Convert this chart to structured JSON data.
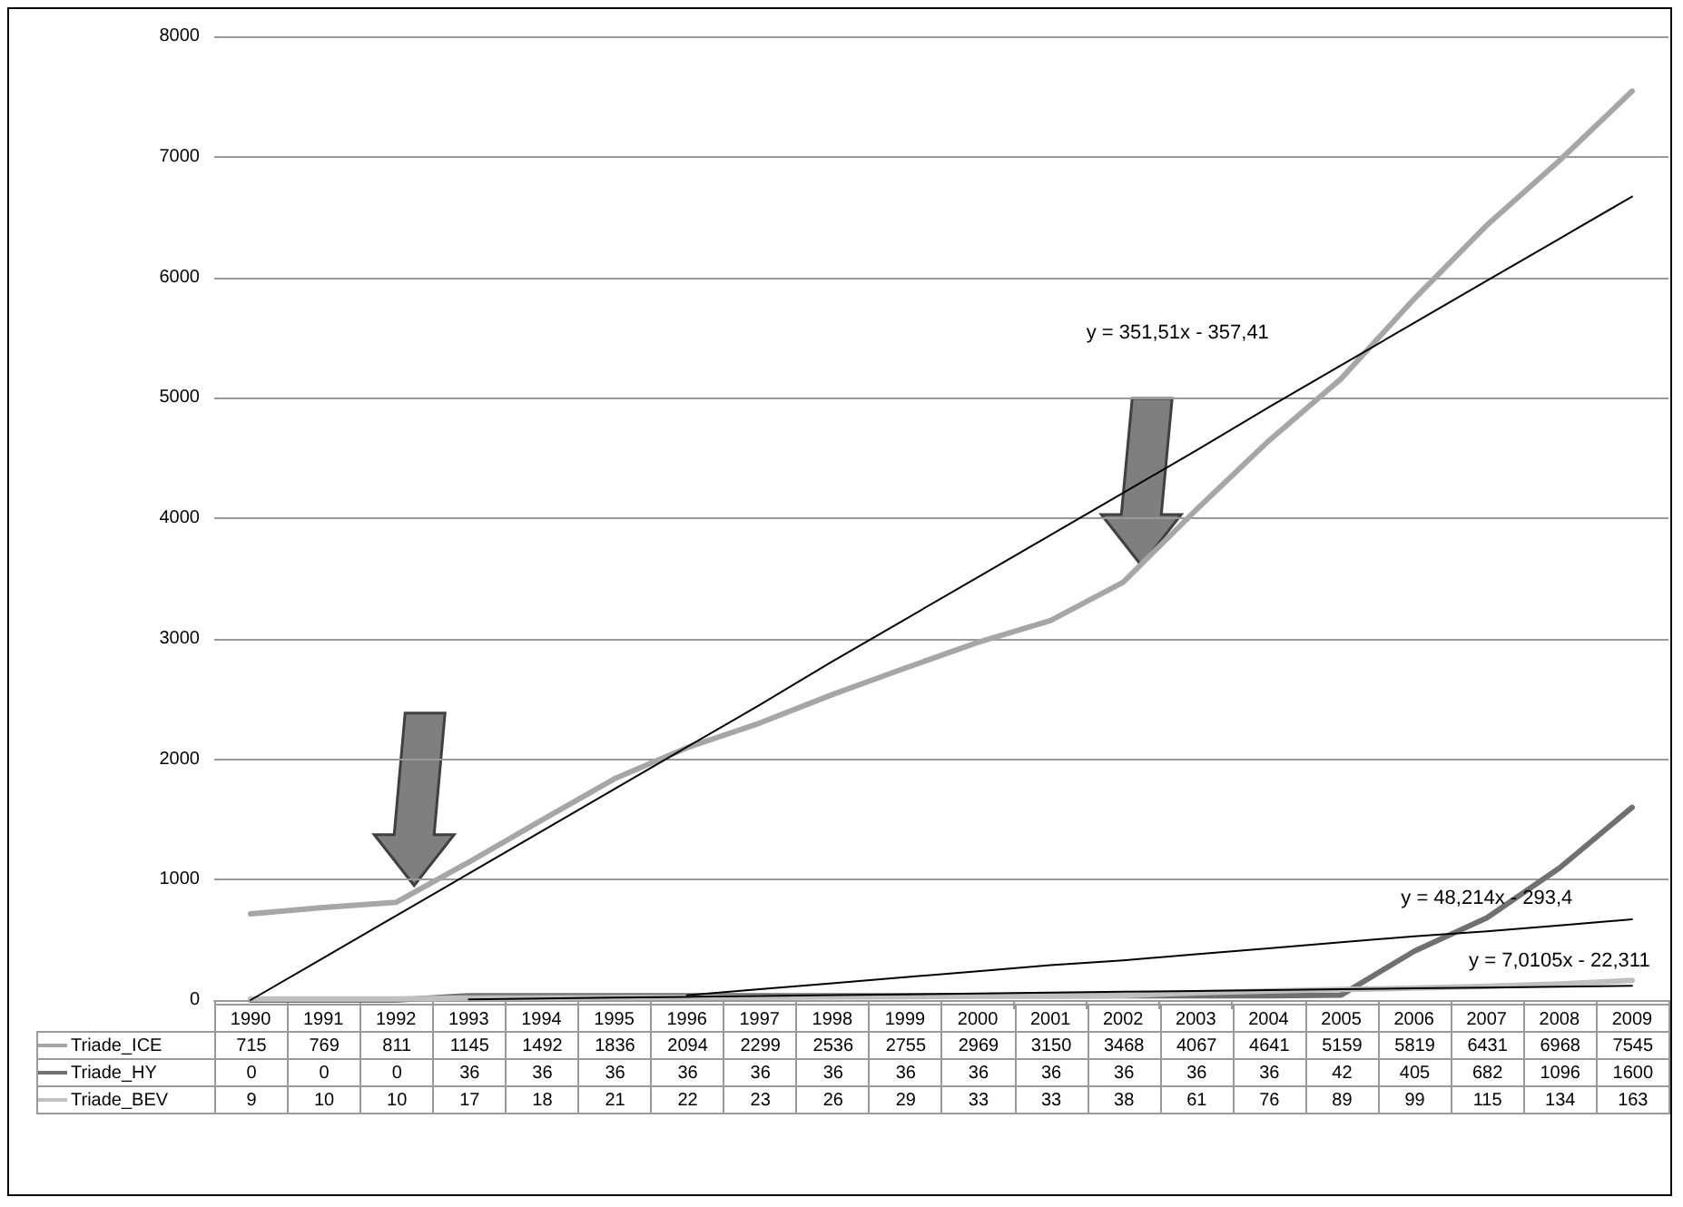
{
  "chart_data": {
    "type": "line",
    "categories": [
      "1990",
      "1991",
      "1992",
      "1993",
      "1994",
      "1995",
      "1996",
      "1997",
      "1998",
      "1999",
      "2000",
      "2001",
      "2002",
      "2003",
      "2004",
      "2005",
      "2006",
      "2007",
      "2008",
      "2009"
    ],
    "series": [
      {
        "name": "Triade_ICE",
        "color": "#a6a6a6",
        "values": [
          715,
          769,
          811,
          1145,
          1492,
          1836,
          2094,
          2299,
          2536,
          2755,
          2969,
          3150,
          3468,
          4067,
          4641,
          5159,
          5819,
          6431,
          6968,
          7545
        ],
        "value_labels": [
          "715",
          "769",
          "811",
          "1145",
          "1492",
          "1836",
          "2094",
          "2299",
          "2536",
          "2755",
          "2969",
          "3150",
          "3468",
          "4067",
          "4641",
          "5159",
          "5819",
          "6431",
          "6968",
          "7545"
        ]
      },
      {
        "name": "Triade_HY",
        "color": "#707070",
        "values": [
          0,
          0,
          0,
          36,
          36,
          36,
          36,
          36,
          36,
          36,
          36,
          36,
          36,
          36,
          36,
          42,
          405,
          682,
          1096,
          1600
        ],
        "value_labels": [
          "0",
          "0",
          "0",
          "36",
          "36",
          "36",
          "36",
          "36",
          "36",
          "36",
          "36",
          "36",
          "36",
          "36",
          "36",
          "42",
          "405",
          "682",
          "1096",
          "1600"
        ]
      },
      {
        "name": "Triade_BEV",
        "color": "#bfbfbf",
        "values": [
          9,
          10,
          10,
          17,
          18,
          21,
          22,
          23,
          26,
          29,
          33,
          33,
          38,
          61,
          76,
          89,
          99,
          115,
          134,
          163
        ],
        "value_labels": [
          "9",
          "10",
          "10",
          "17",
          "18",
          "21",
          "22",
          "23",
          "26",
          "29",
          "33",
          "33",
          "38",
          "61",
          "76",
          "89",
          "99",
          "115",
          "134",
          "163"
        ]
      },
      {
        "type": "line",
        "color": "#000000",
        "values": [
          0,
          350,
          700,
          1050,
          1400,
          1750,
          2100,
          2450,
          2810,
          3160,
          3510,
          3860,
          4210,
          4560,
          4920,
          5270,
          5620,
          5970,
          6320,
          6670
        ]
      },
      {
        "type": "line",
        "color": "#000000",
        "values": [
          null,
          null,
          null,
          null,
          null,
          null,
          40,
          90,
          140,
          190,
          240,
          290,
          330,
          380,
          430,
          480,
          530,
          570,
          620,
          670
        ]
      },
      {
        "type": "line",
        "color": "#000000",
        "values": [
          null,
          null,
          null,
          6,
          13,
          20,
          27,
          34,
          41,
          48,
          55,
          62,
          69,
          76,
          83,
          90,
          97,
          104,
          111,
          118
        ]
      }
    ],
    "ylim": [
      0,
      8000
    ],
    "yticks": [
      0,
      1000,
      2000,
      3000,
      4000,
      5000,
      6000,
      7000,
      8000
    ],
    "grid": "y",
    "marker": "none",
    "line_style": "solid",
    "legend": "bottom",
    "annotations": [
      "y = 351,51x - 357,41",
      "y = 48,214x - 293,4",
      "y = 7,0105x - 22,311"
    ]
  }
}
